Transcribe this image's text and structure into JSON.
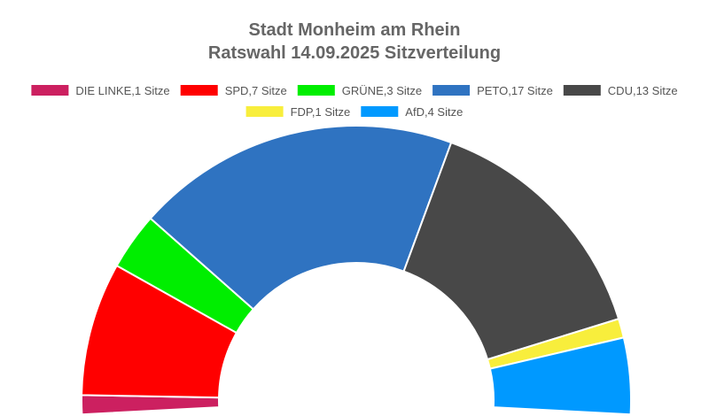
{
  "chart_data": {
    "type": "pie",
    "variant": "semicircle-donut",
    "title_lines": [
      "Stadt Monheim am Rhein",
      "Ratswahl 14.09.2025 Sitzverteilung"
    ],
    "unit_label": "Sitze",
    "legend_position": "top",
    "slices": [
      {
        "name": "DIE LINKE",
        "value": 1,
        "color": "#cc2060"
      },
      {
        "name": "SPD",
        "value": 7,
        "color": "#ff0000"
      },
      {
        "name": "GRÜNE",
        "value": 3,
        "color": "#00ee00"
      },
      {
        "name": "PETO",
        "value": 17,
        "color": "#2f73c1"
      },
      {
        "name": "CDU",
        "value": 13,
        "color": "#484848"
      },
      {
        "name": "FDP",
        "value": 1,
        "color": "#f8ee3c"
      },
      {
        "name": "AfD",
        "value": 4,
        "color": "#0099ff"
      }
    ],
    "legend_labels": [
      "DIE LINKE,1 Sitze",
      "SPD,7 Sitze",
      "GRÜNE,3 Sitze",
      "PETO,17 Sitze",
      "CDU,13 Sitze",
      "FDP,1 Sitze",
      "AfD,4 Sitze"
    ]
  }
}
